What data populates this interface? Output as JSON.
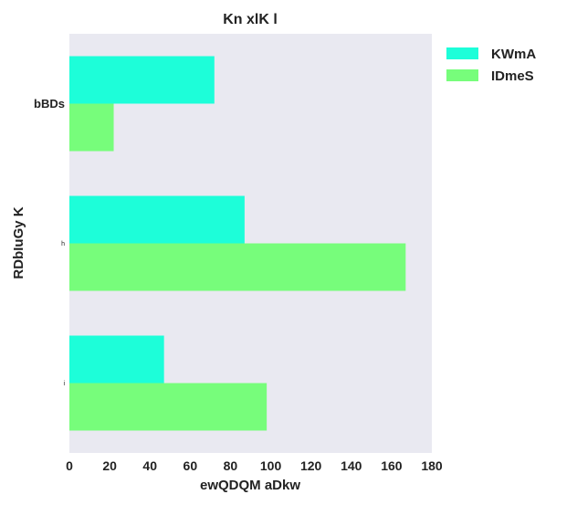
{
  "chart_data": {
    "type": "bar",
    "orientation": "horizontal",
    "title": "Kn xlK l",
    "xlabel": "ewQDQM aDkw",
    "ylabel": "RDbIuGy K",
    "categories": [
      "bBDs",
      "h",
      "i"
    ],
    "category_label_sizes": [
      "large",
      "tiny",
      "tiny"
    ],
    "xlim": [
      0,
      180
    ],
    "xticks": [
      0,
      20,
      40,
      60,
      80,
      100,
      120,
      140,
      160,
      180
    ],
    "grid": false,
    "background": "#e9e9f1",
    "legend_position": "top-right-outside",
    "series": [
      {
        "name": "KWmA",
        "color": "#1dfed9",
        "values": [
          72,
          87,
          47
        ]
      },
      {
        "name": "IDmeS",
        "color": "#77fd7b",
        "values": [
          22,
          167,
          98
        ]
      }
    ]
  }
}
